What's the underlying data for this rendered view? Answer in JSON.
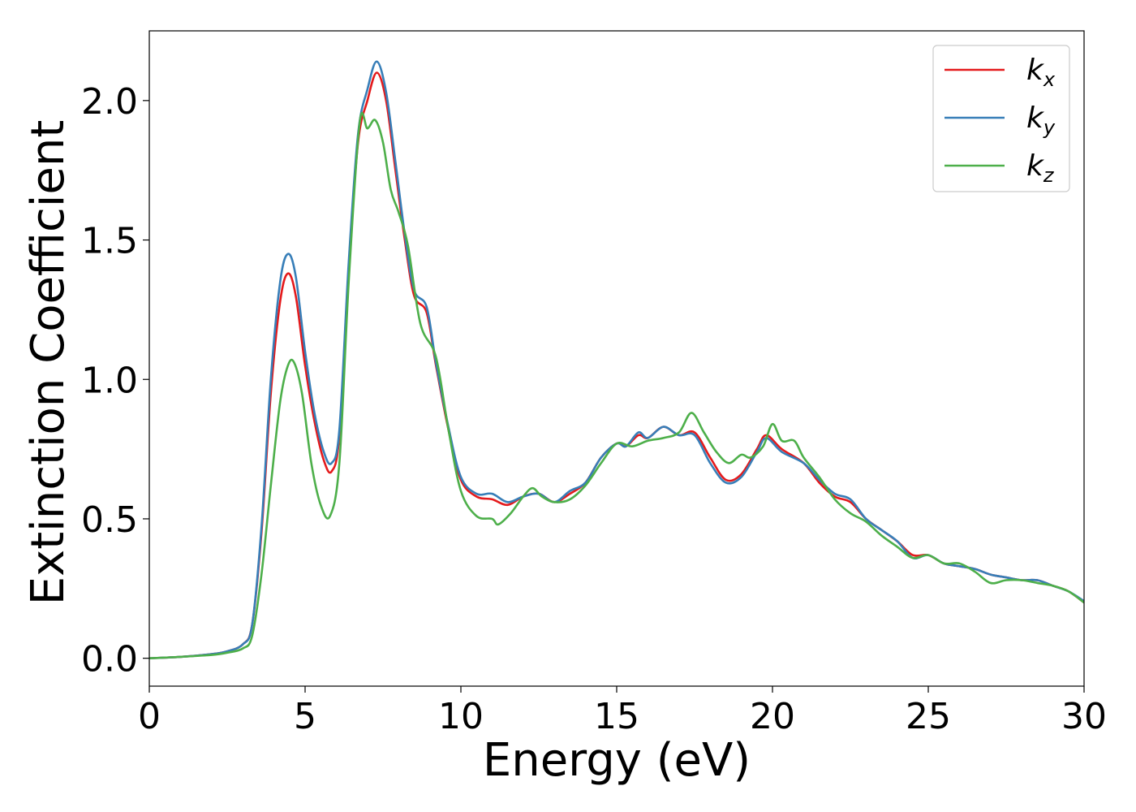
{
  "chart_data": {
    "type": "line",
    "xlabel": "Energy (eV)",
    "ylabel": "Extinction Coefficient",
    "xlim": [
      0,
      30
    ],
    "ylim": [
      -0.1,
      2.25
    ],
    "xticks": [
      0,
      5,
      10,
      15,
      20,
      25,
      30
    ],
    "xtick_labels": [
      "0",
      "5",
      "10",
      "15",
      "20",
      "25",
      "30"
    ],
    "yticks": [
      0.0,
      0.5,
      1.0,
      1.5,
      2.0
    ],
    "ytick_labels": [
      "0.0",
      "0.5",
      "1.0",
      "1.5",
      "2.0"
    ],
    "grid": false,
    "legend_position": "top-right",
    "series": [
      {
        "name": "k_x",
        "label_base": "k",
        "label_sub": "x",
        "color": "#e41a1c",
        "x": [
          0,
          1,
          2,
          2.5,
          3.0,
          3.3,
          3.6,
          3.9,
          4.2,
          4.45,
          4.7,
          5.0,
          5.3,
          5.6,
          5.85,
          6.1,
          6.4,
          6.7,
          7.0,
          7.3,
          7.6,
          7.9,
          8.2,
          8.5,
          8.9,
          9.2,
          9.6,
          10.0,
          10.5,
          11.0,
          11.5,
          12.0,
          12.5,
          13.0,
          13.5,
          14.0,
          14.5,
          15.0,
          15.3,
          15.7,
          16.0,
          16.5,
          17.0,
          17.5,
          18.0,
          18.5,
          19.0,
          19.5,
          19.8,
          20.3,
          21.0,
          21.5,
          22.0,
          22.5,
          23.0,
          23.5,
          24.0,
          24.5,
          25.0,
          25.5,
          26.0,
          26.5,
          27.0,
          27.5,
          28.0,
          28.5,
          29.0,
          29.5,
          30.0
        ],
        "values": [
          0.0,
          0.005,
          0.015,
          0.025,
          0.05,
          0.12,
          0.45,
          0.95,
          1.28,
          1.38,
          1.3,
          1.05,
          0.85,
          0.71,
          0.67,
          0.8,
          1.4,
          1.85,
          2.0,
          2.1,
          2.0,
          1.75,
          1.5,
          1.3,
          1.24,
          1.05,
          0.82,
          0.64,
          0.58,
          0.57,
          0.55,
          0.58,
          0.59,
          0.56,
          0.59,
          0.63,
          0.72,
          0.77,
          0.76,
          0.8,
          0.79,
          0.83,
          0.8,
          0.81,
          0.72,
          0.64,
          0.66,
          0.75,
          0.8,
          0.75,
          0.7,
          0.63,
          0.58,
          0.56,
          0.5,
          0.46,
          0.42,
          0.37,
          0.37,
          0.34,
          0.33,
          0.32,
          0.3,
          0.29,
          0.28,
          0.28,
          0.26,
          0.24,
          0.2
        ]
      },
      {
        "name": "k_y",
        "label_base": "k",
        "label_sub": "y",
        "color": "#377eb8",
        "x": [
          0,
          1,
          2,
          2.5,
          3.0,
          3.3,
          3.6,
          3.9,
          4.2,
          4.45,
          4.7,
          5.0,
          5.3,
          5.6,
          5.85,
          6.1,
          6.4,
          6.7,
          7.0,
          7.3,
          7.6,
          7.9,
          8.2,
          8.5,
          8.9,
          9.2,
          9.6,
          10.0,
          10.5,
          11.0,
          11.5,
          12.0,
          12.5,
          13.0,
          13.5,
          14.0,
          14.5,
          15.0,
          15.3,
          15.7,
          16.0,
          16.5,
          17.0,
          17.5,
          18.0,
          18.5,
          19.0,
          19.5,
          19.8,
          20.3,
          21.0,
          21.5,
          22.0,
          22.5,
          23.0,
          23.5,
          24.0,
          24.5,
          25.0,
          25.5,
          26.0,
          26.5,
          27.0,
          27.5,
          28.0,
          28.5,
          29.0,
          29.5,
          30.0
        ],
        "values": [
          0.0,
          0.005,
          0.015,
          0.025,
          0.05,
          0.12,
          0.47,
          1.0,
          1.35,
          1.45,
          1.37,
          1.1,
          0.88,
          0.74,
          0.7,
          0.82,
          1.42,
          1.88,
          2.04,
          2.14,
          2.03,
          1.78,
          1.52,
          1.32,
          1.26,
          1.06,
          0.83,
          0.65,
          0.59,
          0.59,
          0.56,
          0.58,
          0.59,
          0.56,
          0.6,
          0.63,
          0.72,
          0.77,
          0.76,
          0.81,
          0.79,
          0.83,
          0.8,
          0.8,
          0.7,
          0.63,
          0.65,
          0.74,
          0.79,
          0.74,
          0.7,
          0.64,
          0.59,
          0.57,
          0.5,
          0.46,
          0.42,
          0.36,
          0.37,
          0.34,
          0.33,
          0.32,
          0.3,
          0.29,
          0.28,
          0.28,
          0.26,
          0.24,
          0.205
        ]
      },
      {
        "name": "k_z",
        "label_base": "k",
        "label_sub": "z",
        "color": "#4daf4a",
        "x": [
          0,
          1,
          2,
          2.5,
          3.0,
          3.3,
          3.6,
          3.9,
          4.2,
          4.45,
          4.65,
          4.9,
          5.2,
          5.5,
          5.8,
          6.1,
          6.4,
          6.75,
          7.0,
          7.25,
          7.5,
          7.75,
          8.0,
          8.3,
          8.7,
          9.2,
          9.6,
          10.0,
          10.5,
          11.0,
          11.2,
          11.6,
          12.0,
          12.3,
          12.6,
          13.0,
          13.5,
          14.0,
          14.5,
          15.0,
          15.5,
          16.0,
          16.5,
          17.0,
          17.4,
          17.8,
          18.2,
          18.6,
          19.0,
          19.3,
          19.7,
          20.0,
          20.3,
          20.7,
          21.0,
          21.5,
          22.0,
          22.5,
          23.0,
          23.5,
          24.0,
          24.5,
          25.0,
          25.5,
          26.0,
          26.5,
          27.0,
          27.5,
          28.0,
          28.5,
          29.0,
          29.5,
          30.0
        ],
        "values": [
          0.0,
          0.005,
          0.012,
          0.02,
          0.035,
          0.08,
          0.3,
          0.62,
          0.92,
          1.05,
          1.06,
          0.95,
          0.7,
          0.55,
          0.51,
          0.7,
          1.35,
          1.92,
          1.9,
          1.93,
          1.85,
          1.68,
          1.6,
          1.48,
          1.2,
          1.08,
          0.82,
          0.6,
          0.51,
          0.5,
          0.48,
          0.52,
          0.58,
          0.61,
          0.58,
          0.56,
          0.57,
          0.62,
          0.7,
          0.77,
          0.76,
          0.78,
          0.79,
          0.81,
          0.88,
          0.81,
          0.74,
          0.7,
          0.73,
          0.72,
          0.76,
          0.84,
          0.78,
          0.78,
          0.72,
          0.65,
          0.57,
          0.52,
          0.49,
          0.44,
          0.4,
          0.36,
          0.37,
          0.34,
          0.34,
          0.31,
          0.27,
          0.28,
          0.28,
          0.27,
          0.26,
          0.24,
          0.2
        ]
      }
    ]
  }
}
